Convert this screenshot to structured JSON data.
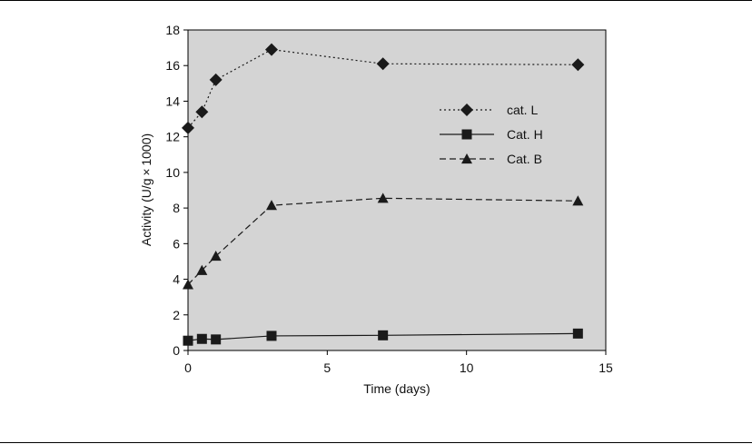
{
  "chart_data": {
    "type": "line",
    "xlabel": "Time (days)",
    "ylabel": "Activity (U/g × 1000)",
    "xlim": [
      0,
      15
    ],
    "ylim": [
      0,
      18
    ],
    "xticks": [
      0,
      5,
      10,
      15
    ],
    "yticks": [
      0,
      2,
      4,
      6,
      8,
      10,
      12,
      14,
      16,
      18
    ],
    "grid": false,
    "background_color": "#d4d4d4",
    "legend_position": "upper-right inside plot",
    "series": [
      {
        "name": "cat. L",
        "marker": "diamond",
        "line_style": "dotted",
        "points": [
          [
            0,
            12.5
          ],
          [
            0.5,
            13.4
          ],
          [
            1,
            15.2
          ],
          [
            3,
            16.9
          ],
          [
            7,
            16.1
          ],
          [
            14,
            16.05
          ]
        ]
      },
      {
        "name": "Cat. H",
        "marker": "square",
        "line_style": "solid",
        "points": [
          [
            0,
            0.55
          ],
          [
            0.5,
            0.65
          ],
          [
            1,
            0.62
          ],
          [
            3,
            0.82
          ],
          [
            7,
            0.85
          ],
          [
            14,
            0.95
          ]
        ]
      },
      {
        "name": "Cat. B",
        "marker": "triangle",
        "line_style": "dashed",
        "points": [
          [
            0,
            3.7
          ],
          [
            0.5,
            4.5
          ],
          [
            1,
            5.3
          ],
          [
            3,
            8.15
          ],
          [
            7,
            8.55
          ],
          [
            14,
            8.4
          ]
        ]
      }
    ]
  }
}
